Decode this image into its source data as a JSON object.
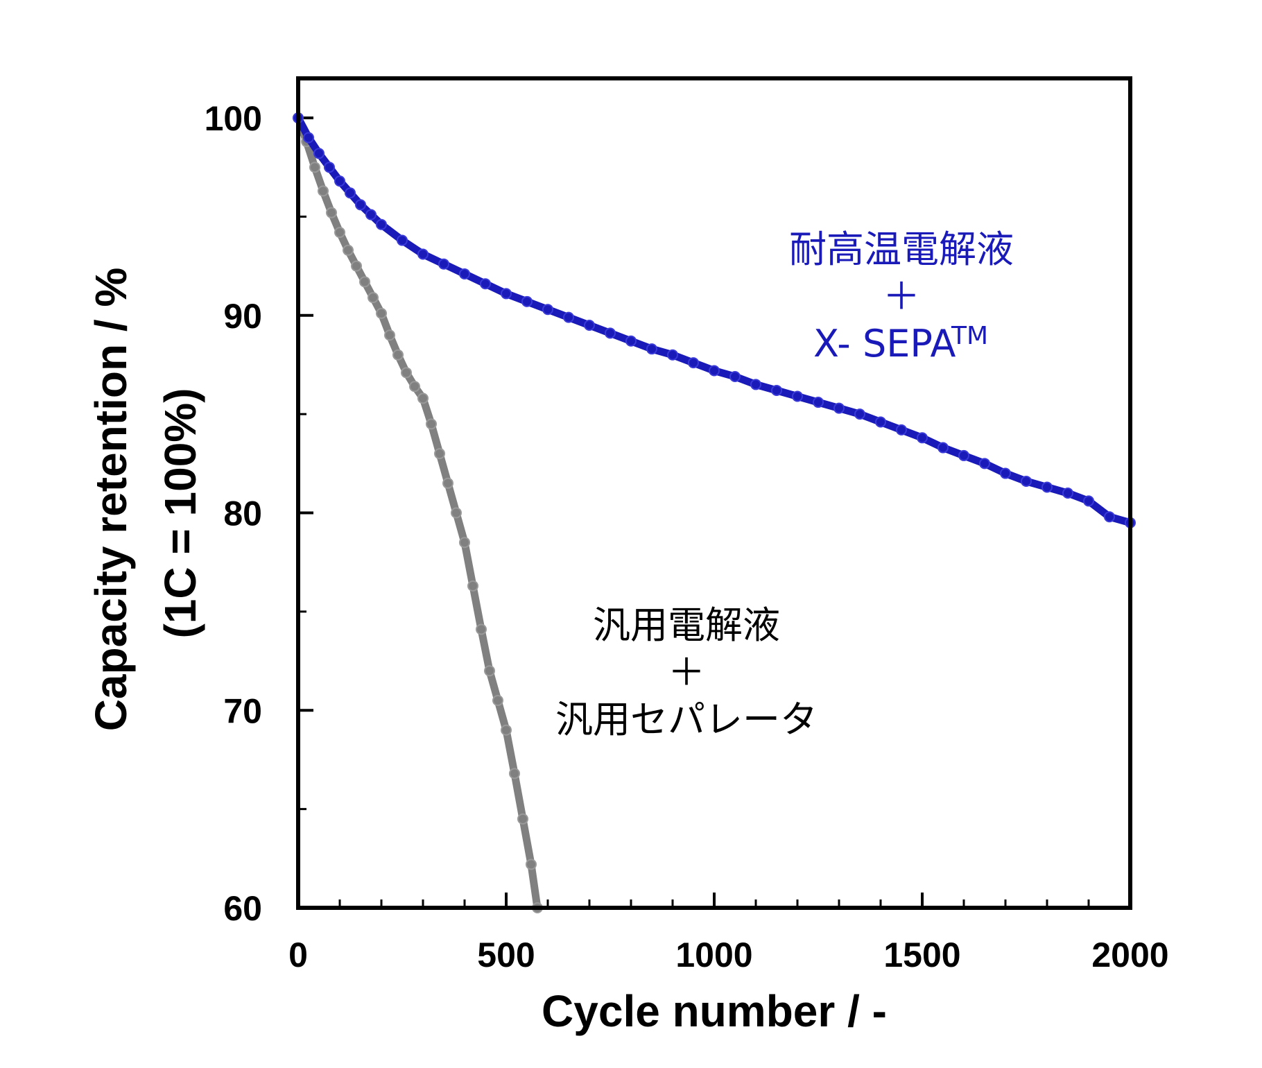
{
  "chart_data": {
    "type": "scatter",
    "title": "",
    "xlabel": "Cycle number / -",
    "ylabel_line1": "Capacity retention / %",
    "ylabel_line2": "(1C = 100%)",
    "xlim": [
      0,
      2000
    ],
    "ylim": [
      60,
      100
    ],
    "x_ticks": [
      0,
      500,
      1000,
      1500,
      2000
    ],
    "x_minor_ticks": [
      100,
      200,
      300,
      400,
      600,
      700,
      800,
      900,
      1100,
      1200,
      1300,
      1400,
      1600,
      1700,
      1800,
      1900
    ],
    "y_ticks": [
      60,
      70,
      80,
      90,
      100
    ],
    "y_minor_ticks": [
      65,
      75,
      85,
      95
    ],
    "series": [
      {
        "name": "汎用電解液 + 汎用セパレータ",
        "color": "#808080",
        "x": [
          0,
          20,
          40,
          60,
          80,
          100,
          120,
          140,
          160,
          180,
          200,
          220,
          240,
          260,
          280,
          300,
          320,
          340,
          360,
          380,
          400,
          420,
          440,
          460,
          480,
          500,
          520,
          540,
          560,
          575
        ],
        "y": [
          100,
          98.8,
          97.5,
          96.3,
          95.2,
          94.2,
          93.3,
          92.5,
          91.7,
          90.9,
          90.1,
          89.0,
          88.0,
          87.1,
          86.4,
          85.8,
          84.5,
          83.0,
          81.5,
          80.0,
          78.5,
          76.3,
          74.1,
          72.0,
          70.5,
          69.0,
          66.8,
          64.5,
          62.2,
          60.0
        ]
      },
      {
        "name": "耐高温電解液 + X- SEPA TM",
        "color": "#1a1ab8",
        "x": [
          0,
          25,
          50,
          75,
          100,
          125,
          150,
          175,
          200,
          250,
          300,
          350,
          400,
          450,
          500,
          550,
          600,
          650,
          700,
          750,
          800,
          850,
          900,
          950,
          1000,
          1050,
          1100,
          1150,
          1200,
          1250,
          1300,
          1350,
          1400,
          1450,
          1500,
          1550,
          1600,
          1650,
          1700,
          1750,
          1800,
          1850,
          1900,
          1950,
          2000
        ],
        "y": [
          100,
          99.0,
          98.2,
          97.5,
          96.8,
          96.2,
          95.6,
          95.1,
          94.6,
          93.8,
          93.1,
          92.6,
          92.1,
          91.6,
          91.1,
          90.7,
          90.3,
          89.9,
          89.5,
          89.1,
          88.7,
          88.3,
          88.0,
          87.6,
          87.2,
          86.9,
          86.5,
          86.2,
          85.9,
          85.6,
          85.3,
          85.0,
          84.6,
          84.2,
          83.8,
          83.3,
          82.9,
          82.5,
          82.0,
          81.6,
          81.3,
          81.0,
          80.6,
          79.8,
          79.5
        ]
      }
    ],
    "annotations": {
      "blue_line1": "耐高温電解液",
      "blue_plus": "＋",
      "blue_line3": "X- SEPA",
      "blue_tm": "TM",
      "gray_line1": "汎用電解液",
      "gray_plus": "＋",
      "gray_line3": "汎用セパレータ"
    }
  }
}
